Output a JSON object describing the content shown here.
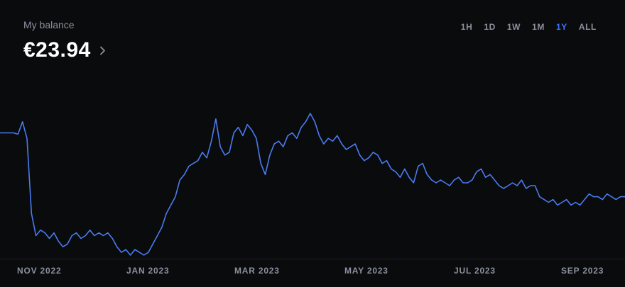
{
  "balance": {
    "label": "My balance",
    "value": "€23.94"
  },
  "time_ranges": [
    "1H",
    "1D",
    "1W",
    "1M",
    "1Y",
    "ALL"
  ],
  "active_range": "1Y",
  "colors": {
    "line": "#4a7bf0",
    "active_range": "#3f73ff",
    "background": "#0a0b0d"
  },
  "icons": {
    "balance_chevron": "chevron-right-icon"
  },
  "chart_data": {
    "type": "line",
    "x_tick_labels": [
      "NOV 2022",
      "JAN 2023",
      "MAR 2023",
      "MAY 2023",
      "JUL 2023",
      "SEP 2023"
    ],
    "series": [
      {
        "values": [
          23.9,
          23.9,
          23.9,
          23.9,
          23.85,
          24.3,
          23.7,
          21.0,
          20.2,
          20.4,
          20.3,
          20.1,
          20.3,
          20.0,
          19.8,
          19.9,
          20.2,
          20.3,
          20.1,
          20.2,
          20.4,
          20.2,
          20.3,
          20.2,
          20.3,
          20.1,
          19.8,
          19.6,
          19.7,
          19.5,
          19.7,
          19.6,
          19.5,
          19.6,
          19.9,
          20.2,
          20.5,
          21.0,
          21.3,
          21.6,
          22.2,
          22.4,
          22.7,
          22.8,
          22.9,
          23.2,
          23.0,
          23.6,
          24.4,
          23.4,
          23.1,
          23.2,
          23.9,
          24.1,
          23.8,
          24.2,
          24.0,
          23.7,
          22.8,
          22.4,
          23.1,
          23.5,
          23.6,
          23.4,
          23.8,
          23.9,
          23.7,
          24.1,
          24.3,
          24.6,
          24.3,
          23.8,
          23.5,
          23.7,
          23.6,
          23.8,
          23.5,
          23.3,
          23.4,
          23.5,
          23.1,
          22.9,
          23.0,
          23.2,
          23.1,
          22.8,
          22.9,
          22.6,
          22.5,
          22.3,
          22.6,
          22.3,
          22.1,
          22.7,
          22.8,
          22.4,
          22.2,
          22.1,
          22.2,
          22.1,
          22.0,
          22.2,
          22.3,
          22.1,
          22.1,
          22.2,
          22.5,
          22.6,
          22.3,
          22.4,
          22.2,
          22.0,
          21.9,
          22.0,
          22.1,
          22.0,
          22.2,
          21.9,
          22.0,
          22.0,
          21.6,
          21.5,
          21.4,
          21.5,
          21.3,
          21.4,
          21.5,
          21.3,
          21.4,
          21.3,
          21.5,
          21.7,
          21.6,
          21.6,
          21.5,
          21.7,
          21.6,
          21.5,
          21.6,
          21.6
        ]
      }
    ],
    "grid": false
  }
}
